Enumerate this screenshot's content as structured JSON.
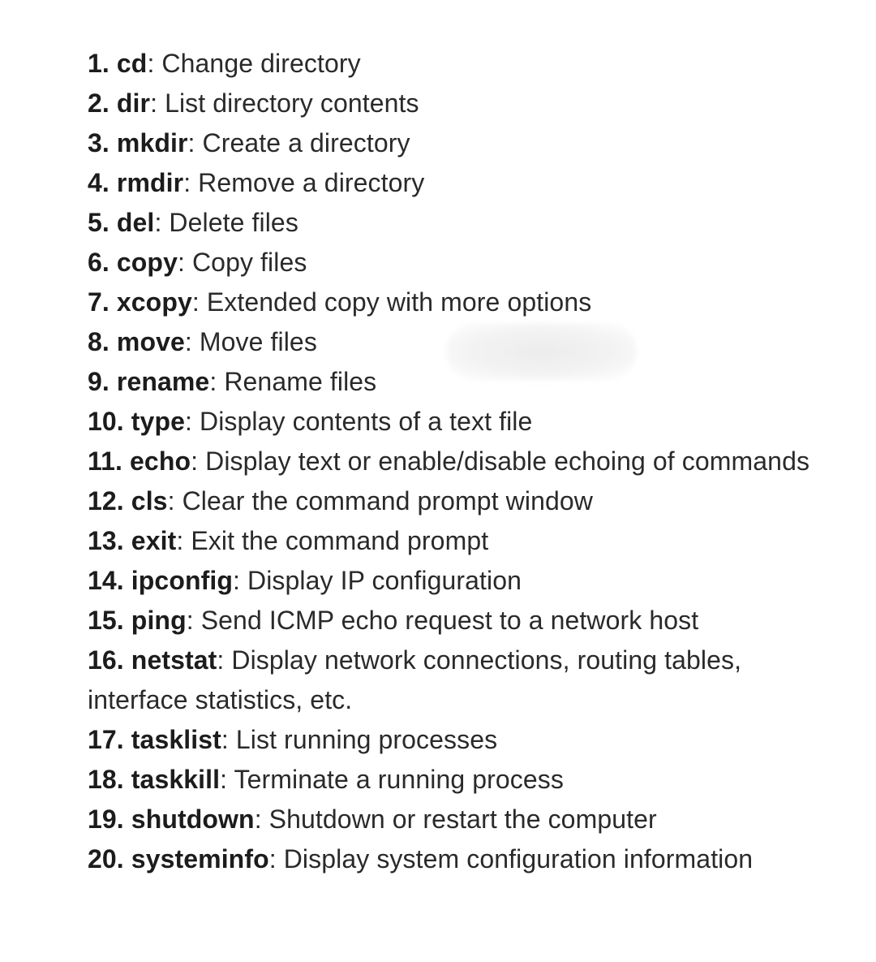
{
  "items": [
    {
      "num": "1.",
      "cmd": "cd",
      "desc": ": Change directory"
    },
    {
      "num": "2.",
      "cmd": "dir",
      "desc": ": List directory contents"
    },
    {
      "num": "3.",
      "cmd": "mkdir",
      "desc": ": Create a directory"
    },
    {
      "num": "4.",
      "cmd": "rmdir",
      "desc": ": Remove a directory"
    },
    {
      "num": "5.",
      "cmd": "del",
      "desc": ": Delete files"
    },
    {
      "num": "6.",
      "cmd": "copy",
      "desc": ": Copy files"
    },
    {
      "num": "7.",
      "cmd": "xcopy",
      "desc": ": Extended copy with more options"
    },
    {
      "num": "8.",
      "cmd": "move",
      "desc": ": Move files"
    },
    {
      "num": "9.",
      "cmd": "rename",
      "desc": ": Rename files"
    },
    {
      "num": "10.",
      "cmd": "type",
      "desc": ": Display contents of a text file"
    },
    {
      "num": "11.",
      "cmd": "echo",
      "desc": ": Display text or enable/disable echoing of commands"
    },
    {
      "num": "12.",
      "cmd": "cls",
      "desc": ": Clear the command prompt window"
    },
    {
      "num": "13.",
      "cmd": "exit",
      "desc": ": Exit the command prompt"
    },
    {
      "num": "14.",
      "cmd": "ipconfig",
      "desc": ": Display IP configuration"
    },
    {
      "num": "15.",
      "cmd": "ping",
      "desc": ": Send ICMP echo request to a network host"
    },
    {
      "num": "16.",
      "cmd": "netstat",
      "desc": ": Display network connections, routing tables, interface statistics, etc."
    },
    {
      "num": "17.",
      "cmd": "tasklist",
      "desc": ": List running processes"
    },
    {
      "num": "18.",
      "cmd": "taskkill",
      "desc": ": Terminate a running process"
    },
    {
      "num": "19.",
      "cmd": "shutdown",
      "desc": ": Shutdown or restart the computer"
    },
    {
      "num": "20.",
      "cmd": "systeminfo",
      "desc": ": Display system configuration information"
    }
  ]
}
